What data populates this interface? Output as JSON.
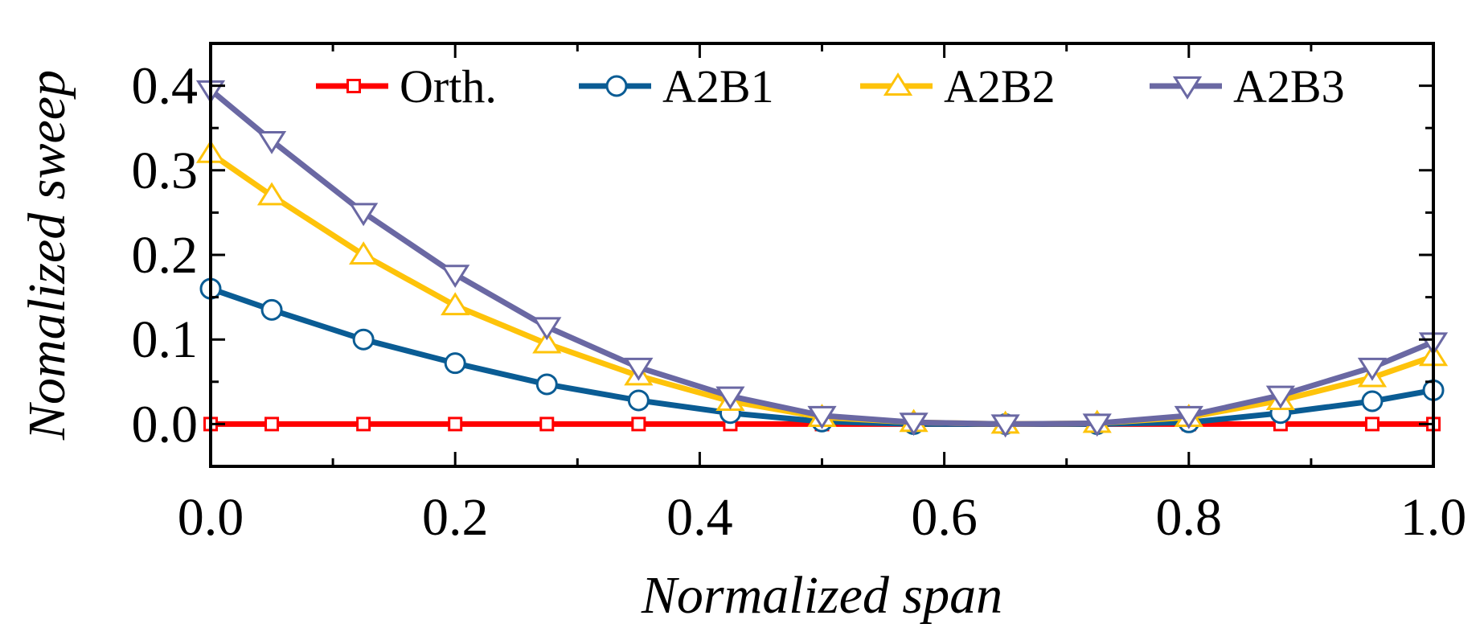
{
  "chart_data": {
    "type": "line",
    "title": "",
    "xlabel": "Normalized span",
    "ylabel": "Nomalized sweep",
    "xlim": [
      0.0,
      1.0
    ],
    "ylim": [
      -0.05,
      0.45
    ],
    "xticks": [
      0.0,
      0.2,
      0.4,
      0.6,
      0.8,
      1.0
    ],
    "xtick_labels": [
      "0.0",
      "0.2",
      "0.4",
      "0.6",
      "0.8",
      "1.0"
    ],
    "yticks": [
      0.0,
      0.1,
      0.2,
      0.3,
      0.4
    ],
    "ytick_labels": [
      "0.0",
      "0.1",
      "0.2",
      "0.3",
      "0.4"
    ],
    "grid": false,
    "legend_position": "top-right",
    "x": [
      0.0,
      0.05,
      0.125,
      0.2,
      0.275,
      0.35,
      0.425,
      0.5,
      0.575,
      0.65,
      0.725,
      0.8,
      0.875,
      0.95,
      1.0
    ],
    "series": [
      {
        "name": "Orth.",
        "color": "#ff0000",
        "marker": "square",
        "values": [
          0,
          0,
          0,
          0,
          0,
          0,
          0,
          0,
          0,
          0,
          0,
          0,
          0,
          0,
          0
        ]
      },
      {
        "name": "A2B1",
        "color": "#0a5c94",
        "marker": "circle",
        "values": [
          0.16,
          0.135,
          0.1,
          0.072,
          0.047,
          0.028,
          0.013,
          0.003,
          0,
          0,
          0,
          0.002,
          0.013,
          0.027,
          0.04
        ]
      },
      {
        "name": "A2B2",
        "color": "#fec30a",
        "marker": "triangle-up",
        "values": [
          0.32,
          0.27,
          0.2,
          0.14,
          0.095,
          0.057,
          0.027,
          0.008,
          0.002,
          0,
          0.001,
          0.008,
          0.028,
          0.055,
          0.08
        ]
      },
      {
        "name": "A2B3",
        "color": "#6a68a3",
        "marker": "triangle-down",
        "values": [
          0.395,
          0.335,
          0.25,
          0.177,
          0.115,
          0.067,
          0.033,
          0.01,
          0.002,
          0,
          0.001,
          0.01,
          0.034,
          0.067,
          0.097
        ]
      }
    ]
  }
}
